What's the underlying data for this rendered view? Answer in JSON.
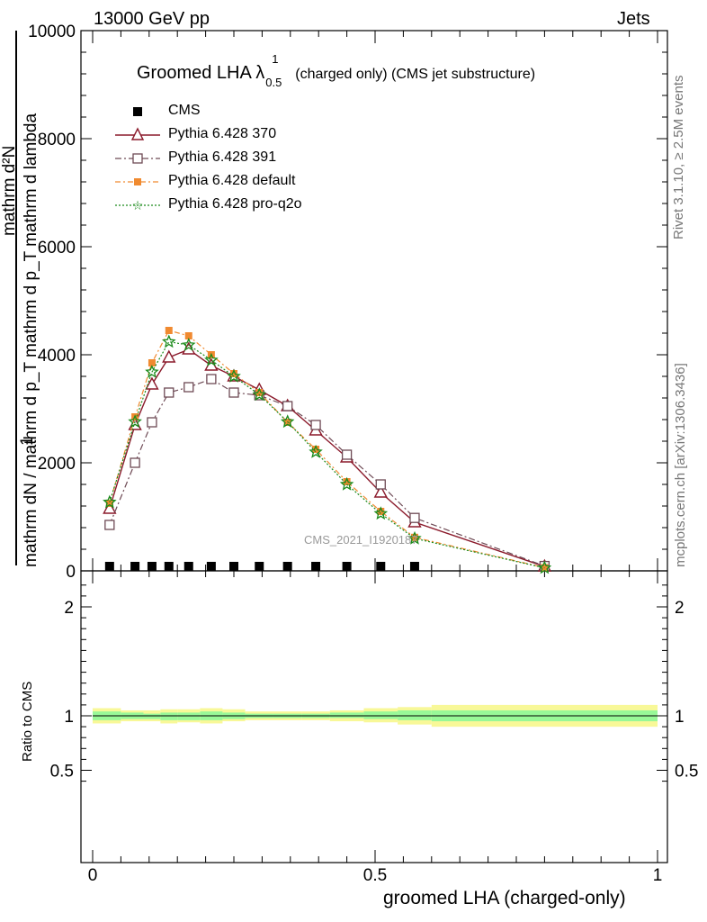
{
  "header": {
    "left": "13000 GeV pp",
    "right": "Jets"
  },
  "side_text": {
    "rivet": "Rivet 3.1.10, ≥ 2.5M events",
    "mcplots": "mcplots.cern.ch [arXiv:1306.3436]"
  },
  "plot_title": {
    "main": "Groomed LHA λ",
    "sup": "1",
    "sub": "0.5",
    "rest": "(charged only) (CMS jet substructure)"
  },
  "watermark": "CMS_2021_I1920187",
  "colors": {
    "cms": "#000000",
    "p370": "#8b1a2b",
    "p391": "#6e4a55",
    "pdefault": "#f08a30",
    "pq2o": "#1a8a1a",
    "band_inner": "#98f898",
    "band_outer": "#f8f898"
  },
  "chart_data": [
    {
      "type": "line",
      "ylabel_top": "mathrm d^{2}N",
      "ylabel_top_display": "mathrm d²N",
      "ylabel_frac": "1 / mathrm dN / mathrm d p_T mathrm d p_T mathrm d lambda",
      "ylabel_numerator": "mathrm dN",
      "ylabel_left": "1",
      "ylabel_denominator": "mathrm dN / mathrm d p_T mathrm d p_T mathrm d lambda",
      "ylim": [
        0,
        10000
      ],
      "y_ticks": [
        0,
        2000,
        4000,
        6000,
        8000,
        10000
      ],
      "y_tick_labels": [
        "0",
        "2000",
        "4000",
        "6000",
        "8000",
        "10000"
      ],
      "xlim": [
        0,
        1
      ],
      "grid": false,
      "legend_position": "top-left",
      "x": [
        0.03,
        0.075,
        0.105,
        0.135,
        0.17,
        0.21,
        0.25,
        0.295,
        0.345,
        0.395,
        0.45,
        0.51,
        0.57,
        0.8
      ],
      "series": [
        {
          "name": "CMS",
          "marker": "square",
          "values": [
            10,
            10,
            10,
            10,
            10,
            10,
            10,
            10,
            10,
            10,
            10,
            10,
            10,
            null
          ]
        },
        {
          "name": "Pythia 6.428 370",
          "marker": "triangle-open",
          "values": [
            1150,
            2700,
            3450,
            3950,
            4100,
            3800,
            3600,
            3350,
            3050,
            2600,
            2100,
            1450,
            900,
            80
          ]
        },
        {
          "name": "Pythia 6.428 391",
          "marker": "square-open",
          "values": [
            850,
            2000,
            2750,
            3300,
            3400,
            3550,
            3300,
            3250,
            3050,
            2700,
            2150,
            1600,
            980,
            90
          ]
        },
        {
          "name": "Pythia 6.428 default",
          "marker": "square-filled",
          "values": [
            1250,
            2850,
            3850,
            4450,
            4350,
            4000,
            3650,
            3300,
            2750,
            2250,
            1650,
            1100,
            620,
            60
          ]
        },
        {
          "name": "Pythia 6.428 pro-q2o",
          "marker": "star",
          "values": [
            1270,
            2760,
            3680,
            4240,
            4180,
            3900,
            3600,
            3260,
            2760,
            2200,
            1600,
            1060,
            600,
            55
          ]
        }
      ]
    },
    {
      "type": "area",
      "ylabel": "Ratio to CMS",
      "ylim": [
        0.3,
        2.3
      ],
      "y_ticks": [
        0.5,
        1,
        2
      ],
      "y_tick_labels": [
        "0.5",
        "1",
        "2"
      ],
      "xlabel": "groomed LHA (charged-only)",
      "xlim": [
        0,
        1
      ],
      "x_ticks": [
        0,
        0.5,
        1
      ],
      "x_tick_labels": [
        "0",
        "0.5",
        "1"
      ],
      "bin_edges": [
        0,
        0.05,
        0.09,
        0.12,
        0.15,
        0.19,
        0.23,
        0.27,
        0.32,
        0.37,
        0.42,
        0.48,
        0.54,
        0.6,
        1.0
      ],
      "inner_band": [
        [
          0.96,
          1.04
        ],
        [
          0.97,
          1.03
        ],
        [
          0.97,
          1.02
        ],
        [
          0.96,
          1.03
        ],
        [
          0.96,
          1.03
        ],
        [
          0.96,
          1.04
        ],
        [
          0.97,
          1.03
        ],
        [
          0.98,
          1.02
        ],
        [
          0.98,
          1.02
        ],
        [
          0.98,
          1.02
        ],
        [
          0.98,
          1.03
        ],
        [
          0.97,
          1.04
        ],
        [
          0.96,
          1.05
        ],
        [
          0.95,
          1.05
        ]
      ],
      "outer_band": [
        [
          0.93,
          1.07
        ],
        [
          0.95,
          1.05
        ],
        [
          0.95,
          1.05
        ],
        [
          0.93,
          1.06
        ],
        [
          0.94,
          1.06
        ],
        [
          0.93,
          1.07
        ],
        [
          0.95,
          1.06
        ],
        [
          0.96,
          1.04
        ],
        [
          0.96,
          1.04
        ],
        [
          0.96,
          1.04
        ],
        [
          0.95,
          1.05
        ],
        [
          0.94,
          1.07
        ],
        [
          0.92,
          1.08
        ],
        [
          0.9,
          1.1
        ]
      ],
      "reference_line": 1
    }
  ]
}
